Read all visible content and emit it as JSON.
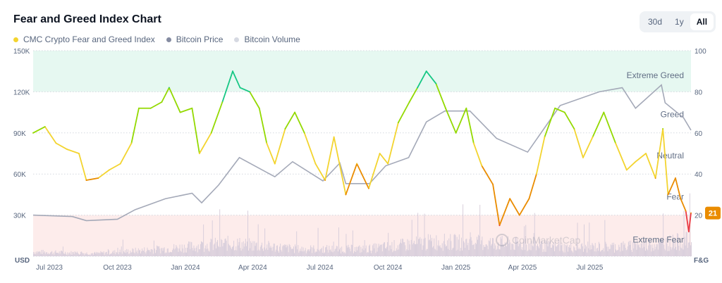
{
  "title": "Fear and Greed Index Chart",
  "legend": [
    {
      "label": "CMC Crypto Fear and Greed Index",
      "color": "#f3d42f"
    },
    {
      "label": "Bitcoin Price",
      "color": "#858ca2"
    },
    {
      "label": "Bitcoin Volume",
      "color": "#d6d9e2"
    }
  ],
  "range_buttons": [
    {
      "label": "30d",
      "active": false
    },
    {
      "label": "1y",
      "active": false
    },
    {
      "label": "All",
      "active": true
    }
  ],
  "watermark": "CoinMarketCap",
  "current_badge": {
    "value": "21",
    "color": "#ea8c00"
  },
  "chart_data": {
    "type": "line",
    "left_axis": {
      "unit_label": "USD",
      "ticks": [
        "30K",
        "60K",
        "90K",
        "120K",
        "150K"
      ],
      "tick_values": [
        30000,
        60000,
        90000,
        120000,
        150000
      ],
      "range": [
        0,
        150000
      ]
    },
    "right_axis": {
      "unit_label": "F&G",
      "ticks": [
        "20",
        "40",
        "60",
        "80",
        "100"
      ],
      "tick_values": [
        20,
        40,
        60,
        80,
        100
      ],
      "range": [
        0,
        100
      ]
    },
    "x_range": [
      "2023-06-09",
      "2025-11-15"
    ],
    "x_ticks": [
      {
        "label": "Jul 2023",
        "date": "2023-07-01"
      },
      {
        "label": "Oct 2023",
        "date": "2023-10-01"
      },
      {
        "label": "Jan 2024",
        "date": "2024-01-01"
      },
      {
        "label": "Apr 2024",
        "date": "2024-04-01"
      },
      {
        "label": "Jul 2024",
        "date": "2024-07-01"
      },
      {
        "label": "Oct 2024",
        "date": "2024-10-01"
      },
      {
        "label": "Jan 2025",
        "date": "2025-01-01"
      },
      {
        "label": "Apr 2025",
        "date": "2025-04-01"
      },
      {
        "label": "Jul 2025",
        "date": "2025-07-01"
      }
    ],
    "zones": [
      {
        "label": "Extreme Greed",
        "from": 80,
        "to": 100,
        "fill": "#e6f8f1",
        "label_at": 88
      },
      {
        "label": "Greed",
        "from": 60,
        "to": 80,
        "fill": "none",
        "label_at": 69
      },
      {
        "label": "Neutral",
        "from": 40,
        "to": 60,
        "fill": "none",
        "label_at": 49
      },
      {
        "label": "Fear",
        "from": 20,
        "to": 40,
        "fill": "none",
        "label_at": 29
      },
      {
        "label": "Extreme Fear",
        "from": 0,
        "to": 20,
        "fill": "#fdeceb",
        "label_at": 8
      }
    ],
    "fg_colors": {
      "extreme_fear": "#ea3943",
      "fear": "#ea8c00",
      "neutral": "#f3d42f",
      "greed": "#93d900",
      "extreme_greed": "#16c784"
    },
    "grid": true,
    "series": [
      {
        "name": "CMC Crypto Fear and Greed Index",
        "axis": "right",
        "points": [
          [
            "2023-06-09",
            60
          ],
          [
            "2023-06-25",
            63
          ],
          [
            "2023-07-10",
            55
          ],
          [
            "2023-07-25",
            52
          ],
          [
            "2023-08-10",
            50
          ],
          [
            "2023-08-20",
            37
          ],
          [
            "2023-09-05",
            38
          ],
          [
            "2023-09-20",
            42
          ],
          [
            "2023-10-05",
            45
          ],
          [
            "2023-10-20",
            55
          ],
          [
            "2023-10-30",
            72
          ],
          [
            "2023-11-15",
            72
          ],
          [
            "2023-11-30",
            75
          ],
          [
            "2023-12-10",
            82
          ],
          [
            "2023-12-25",
            70
          ],
          [
            "2024-01-10",
            72
          ],
          [
            "2024-01-20",
            50
          ],
          [
            "2024-02-05",
            60
          ],
          [
            "2024-02-20",
            75
          ],
          [
            "2024-03-05",
            90
          ],
          [
            "2024-03-15",
            82
          ],
          [
            "2024-03-28",
            80
          ],
          [
            "2024-04-10",
            72
          ],
          [
            "2024-04-20",
            55
          ],
          [
            "2024-05-01",
            45
          ],
          [
            "2024-05-15",
            62
          ],
          [
            "2024-05-28",
            70
          ],
          [
            "2024-06-10",
            60
          ],
          [
            "2024-06-25",
            45
          ],
          [
            "2024-07-08",
            37
          ],
          [
            "2024-07-20",
            58
          ],
          [
            "2024-08-05",
            30
          ],
          [
            "2024-08-20",
            45
          ],
          [
            "2024-09-05",
            33
          ],
          [
            "2024-09-20",
            50
          ],
          [
            "2024-10-01",
            45
          ],
          [
            "2024-10-15",
            65
          ],
          [
            "2024-10-30",
            75
          ],
          [
            "2024-11-10",
            82
          ],
          [
            "2024-11-22",
            90
          ],
          [
            "2024-12-05",
            84
          ],
          [
            "2024-12-18",
            72
          ],
          [
            "2025-01-01",
            60
          ],
          [
            "2025-01-15",
            72
          ],
          [
            "2025-01-25",
            55
          ],
          [
            "2025-02-05",
            44
          ],
          [
            "2025-02-20",
            35
          ],
          [
            "2025-03-01",
            15
          ],
          [
            "2025-03-15",
            28
          ],
          [
            "2025-03-28",
            20
          ],
          [
            "2025-04-10",
            28
          ],
          [
            "2025-04-20",
            40
          ],
          [
            "2025-05-01",
            58
          ],
          [
            "2025-05-15",
            72
          ],
          [
            "2025-05-28",
            70
          ],
          [
            "2025-06-10",
            62
          ],
          [
            "2025-06-22",
            48
          ],
          [
            "2025-07-05",
            58
          ],
          [
            "2025-07-20",
            70
          ],
          [
            "2025-08-05",
            55
          ],
          [
            "2025-08-20",
            42
          ],
          [
            "2025-09-01",
            46
          ],
          [
            "2025-09-15",
            50
          ],
          [
            "2025-09-28",
            38
          ],
          [
            "2025-10-08",
            62
          ],
          [
            "2025-10-15",
            30
          ],
          [
            "2025-10-25",
            38
          ],
          [
            "2025-11-01",
            28
          ],
          [
            "2025-11-08",
            22
          ],
          [
            "2025-11-12",
            12
          ],
          [
            "2025-11-15",
            21
          ]
        ]
      },
      {
        "name": "Bitcoin Price",
        "axis": "left",
        "points": [
          [
            "2023-06-09",
            30000
          ],
          [
            "2023-08-01",
            29000
          ],
          [
            "2023-08-20",
            26000
          ],
          [
            "2023-10-01",
            27000
          ],
          [
            "2023-10-25",
            34000
          ],
          [
            "2023-12-05",
            42000
          ],
          [
            "2024-01-10",
            46000
          ],
          [
            "2024-01-23",
            39000
          ],
          [
            "2024-02-15",
            52000
          ],
          [
            "2024-03-14",
            72000
          ],
          [
            "2024-05-01",
            58000
          ],
          [
            "2024-05-25",
            69000
          ],
          [
            "2024-07-05",
            55000
          ],
          [
            "2024-07-28",
            68000
          ],
          [
            "2024-08-05",
            53000
          ],
          [
            "2024-09-06",
            53000
          ],
          [
            "2024-09-28",
            66000
          ],
          [
            "2024-10-29",
            72000
          ],
          [
            "2024-11-22",
            98000
          ],
          [
            "2024-12-17",
            106000
          ],
          [
            "2025-01-20",
            106000
          ],
          [
            "2025-02-25",
            86000
          ],
          [
            "2025-04-08",
            76000
          ],
          [
            "2025-05-22",
            110000
          ],
          [
            "2025-07-14",
            120000
          ],
          [
            "2025-08-14",
            123000
          ],
          [
            "2025-09-01",
            108000
          ],
          [
            "2025-10-06",
            125000
          ],
          [
            "2025-10-11",
            112000
          ],
          [
            "2025-11-05",
            101000
          ],
          [
            "2025-11-15",
            92000
          ]
        ]
      },
      {
        "name": "Bitcoin Volume",
        "axis": "left",
        "points": [
          [
            "2023-06-09",
            3000
          ],
          [
            "2023-09-01",
            2000
          ],
          [
            "2023-12-01",
            5000
          ],
          [
            "2024-03-01",
            9000
          ],
          [
            "2024-06-01",
            5000
          ],
          [
            "2024-09-01",
            5000
          ],
          [
            "2024-12-01",
            10000
          ],
          [
            "2025-03-01",
            9000
          ],
          [
            "2025-06-01",
            6000
          ],
          [
            "2025-09-01",
            7000
          ],
          [
            "2025-11-15",
            11000
          ]
        ]
      }
    ]
  }
}
